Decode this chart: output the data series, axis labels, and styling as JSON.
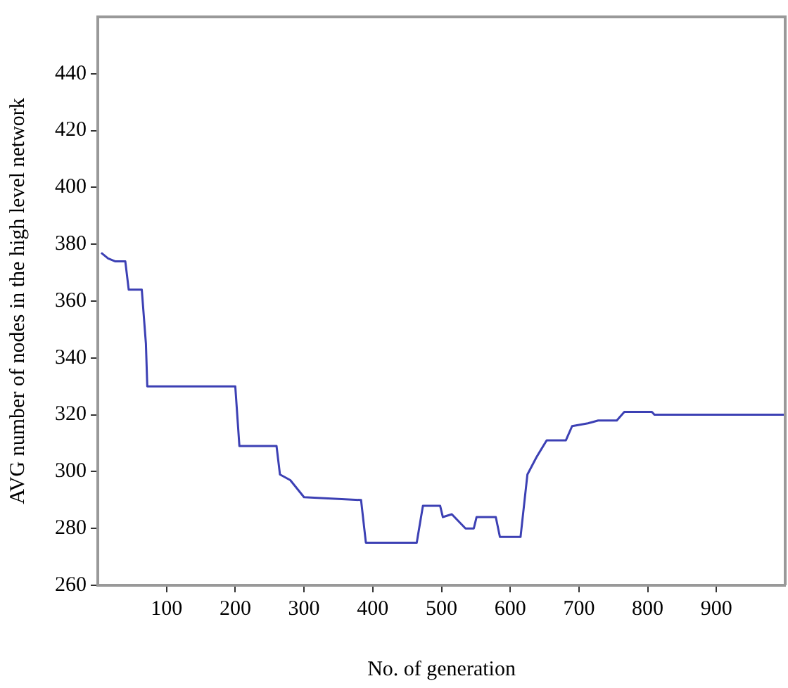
{
  "chart_data": {
    "type": "line",
    "xlabel": "No. of generation",
    "ylabel": "AVG number of nodes in the high level network",
    "x": [
      5,
      15,
      25,
      40,
      45,
      64,
      70,
      72,
      120,
      200,
      206,
      260,
      265,
      280,
      300,
      383,
      390,
      464,
      473,
      498,
      502,
      515,
      535,
      547,
      551,
      579,
      585,
      615,
      625,
      638,
      653,
      681,
      690,
      713,
      728,
      755,
      766,
      806,
      810,
      1000
    ],
    "series": [
      {
        "color": "#3c40b4",
        "values": [
          377,
          375,
          374,
          374,
          364,
          364,
          345,
          330,
          330,
          330,
          309,
          309,
          299,
          297,
          291,
          290,
          275,
          275,
          288,
          288,
          284,
          285,
          280,
          280,
          284,
          284,
          277,
          277,
          299,
          305,
          311,
          311,
          316,
          317,
          318,
          318,
          321,
          321,
          320,
          320
        ]
      }
    ],
    "xlim": [
      0,
      1000
    ],
    "ylim": [
      260,
      460
    ],
    "xticks": [
      100,
      200,
      300,
      400,
      500,
      600,
      700,
      800,
      900
    ],
    "yticks": [
      260,
      280,
      300,
      320,
      340,
      360,
      380,
      400,
      420,
      440
    ],
    "grid": false,
    "legend": false,
    "marker": "none",
    "line_style": "solid"
  }
}
